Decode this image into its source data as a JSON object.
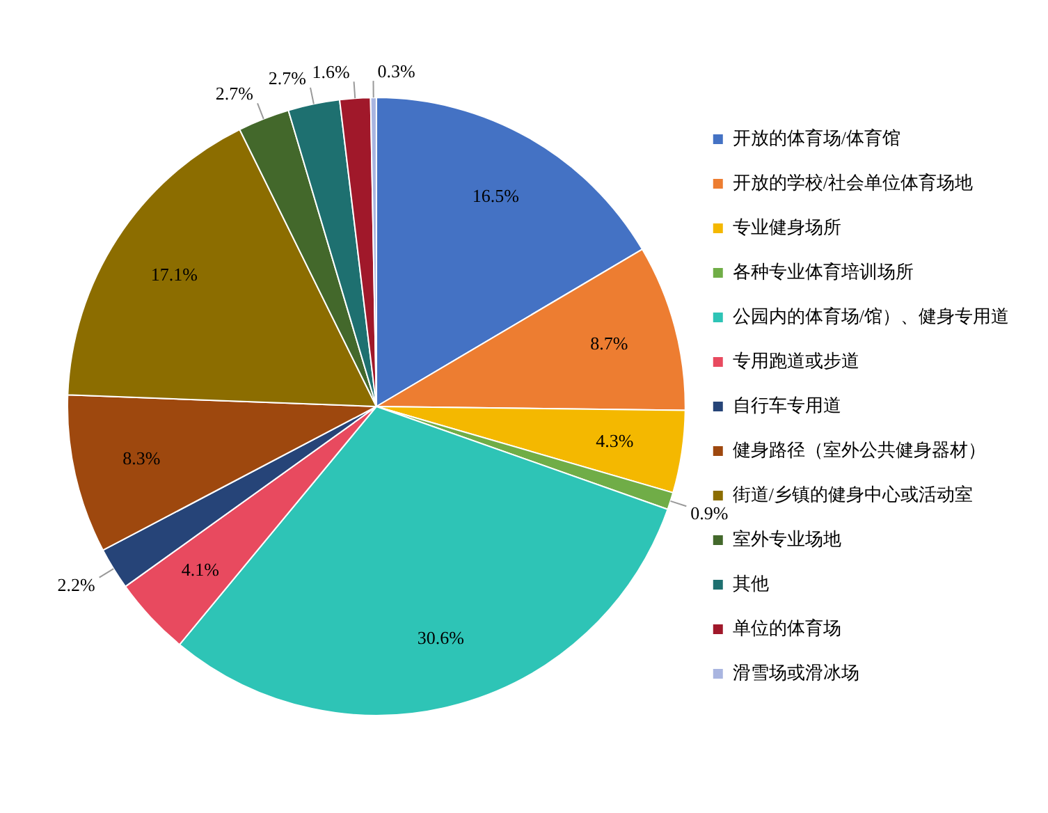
{
  "chart_data": {
    "type": "pie",
    "categories": [
      "开放的体育场/体育馆",
      "开放的学校/社会单位体育场地",
      "专业健身场所",
      "各种专业体育培训场所",
      "公园内的体育场/馆）、健身专用道",
      "专用跑道或步道",
      "自行车专用道",
      "健身路径（室外公共健身器材）",
      "街道/乡镇的健身中心或活动室",
      "室外专业场地",
      "其他",
      "单位的体育场",
      "滑雪场或滑冰场"
    ],
    "values": [
      16.5,
      8.7,
      4.3,
      0.9,
      30.6,
      4.1,
      2.2,
      8.3,
      17.1,
      2.7,
      2.7,
      1.6,
      0.3
    ],
    "colors": [
      "#4472c4",
      "#ed7d31",
      "#f4b800",
      "#70ad47",
      "#2ec4b6",
      "#e84a5f",
      "#264478",
      "#9e480e",
      "#8c6d00",
      "#43682b",
      "#1e7070",
      "#a0182a",
      "#a9b5e0"
    ],
    "value_labels": [
      "16.5%",
      "8.7%",
      "4.3%",
      "0.9%",
      "30.6%",
      "4.1%",
      "2.2%",
      "8.3%",
      "17.1%",
      "2.7%",
      "2.7%",
      "1.6%",
      "0.3%"
    ],
    "legend": "right"
  }
}
